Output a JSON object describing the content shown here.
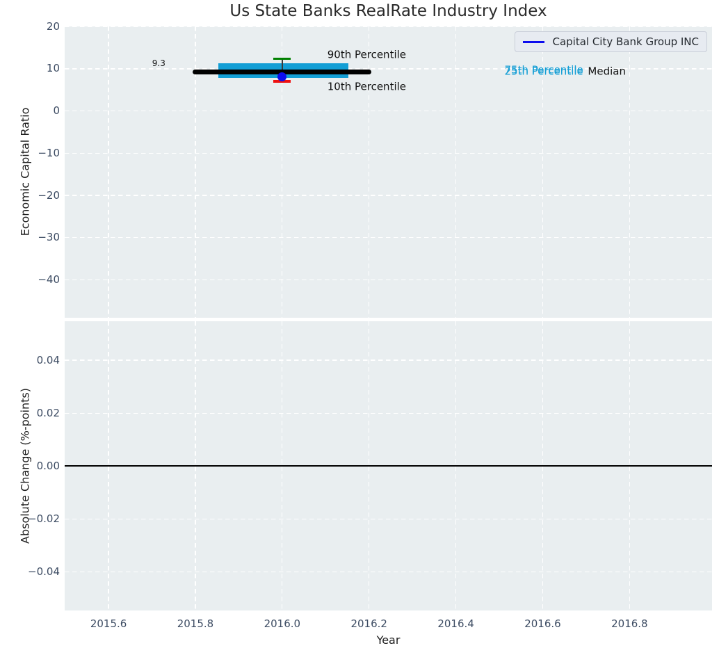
{
  "title": "Us State Banks RealRate Industry Index",
  "xlabel": "Year",
  "legend": {
    "entries": [
      {
        "label": "Capital City Bank Group INC",
        "color": "#0d0dee"
      }
    ]
  },
  "colors": {
    "axes_background": "#e9eef0",
    "grid": "#ffffff",
    "tick_label": "#3d4c63",
    "percentile_band": "#139ed5",
    "p90_marker": "#008000",
    "p10_marker": "#ee1111",
    "company_series": "#0d0dee",
    "median": "#000000"
  },
  "chart_data": [
    {
      "type": "line",
      "panel": "top",
      "ylabel": "Economic Capital Ratio",
      "xlim": [
        2015.499,
        2016.99
      ],
      "ylim": [
        -49.0,
        20.05
      ],
      "xticks": [
        2015.6,
        2015.8,
        2016.0,
        2016.2,
        2016.4,
        2016.6,
        2016.8
      ],
      "yticks": [
        20,
        10,
        0,
        -10,
        -20,
        -30,
        -40
      ],
      "ytick_labels": [
        "20",
        "10",
        "0",
        "−10",
        "−20",
        "−30",
        "−40"
      ],
      "grid": "white-dashed",
      "legend_position": "upper-right",
      "series": [
        {
          "name": "iqr-band",
          "label": "25th–75th Percentile",
          "type": "band",
          "color": "#139ed5",
          "x": [
            2015.853,
            2016.152
          ],
          "y_top": 11.35,
          "y_bottom": 7.85
        },
        {
          "name": "whisker-line",
          "type": "vline",
          "color": "#3a3a3a",
          "x": 2016.0,
          "y": [
            12.4,
            7.0
          ],
          "width": 1.5
        },
        {
          "name": "median-line",
          "label": "Median",
          "type": "thick-line",
          "color": "#000000",
          "x": [
            2015.8,
            2016.2
          ],
          "y": 9.3,
          "width": 7,
          "value_label": "9.3"
        },
        {
          "name": "p90-cap",
          "label": "90th Percentile",
          "type": "cap",
          "color": "#008000",
          "x": 2016.0,
          "y": 12.4
        },
        {
          "name": "p10-cap",
          "label": "10th Percentile",
          "type": "cap",
          "color": "#ee1111",
          "x": 2016.0,
          "y": 7.0
        },
        {
          "name": "company-point",
          "label": "Capital City Bank Group INC",
          "type": "point",
          "color": "#0d0dee",
          "x": 2016.0,
          "y": 8.1
        }
      ],
      "annotations": [
        {
          "text": "9.3",
          "x": 2015.731,
          "y": 11.1,
          "color": "#111111",
          "size": 12,
          "align": "right"
        },
        {
          "text": "90th Percentile",
          "x": 2016.104,
          "y": 13.35,
          "color": "#111111",
          "size": 15,
          "align": "left"
        },
        {
          "text": "10th Percentile",
          "x": 2016.104,
          "y": 5.68,
          "color": "#111111",
          "size": 15,
          "align": "left"
        },
        {
          "text": "75th Percentile",
          "x": 2016.512,
          "y": 9.66,
          "color": "#139ed5",
          "size": 15,
          "align": "left"
        },
        {
          "text": "25th Percentile",
          "x": 2016.512,
          "y": 9.32,
          "color": "#139ed5",
          "size": 15,
          "align": "left"
        },
        {
          "text": "Median",
          "x": 2016.704,
          "y": 9.3,
          "color": "#111111",
          "size": 15,
          "align": "left"
        }
      ]
    },
    {
      "type": "line",
      "panel": "bottom",
      "ylabel": "Absolute Change (%-points)",
      "xlim": [
        2015.499,
        2016.99
      ],
      "ylim": [
        -0.0545,
        0.0547
      ],
      "xticks": [
        2015.6,
        2015.8,
        2016.0,
        2016.2,
        2016.4,
        2016.6,
        2016.8
      ],
      "xtick_labels": [
        "2015.6",
        "2015.8",
        "2016.0",
        "2016.2",
        "2016.4",
        "2016.6",
        "2016.8"
      ],
      "yticks": [
        0.04,
        0.02,
        0.0,
        -0.02,
        -0.04
      ],
      "ytick_labels": [
        "0.04",
        "0.02",
        "0.00",
        "−0.02",
        "−0.04"
      ],
      "grid": "white-dashed",
      "series": [
        {
          "name": "zero-line",
          "type": "hline",
          "color": "#000000",
          "y": 0.0,
          "width": 2
        }
      ]
    }
  ]
}
